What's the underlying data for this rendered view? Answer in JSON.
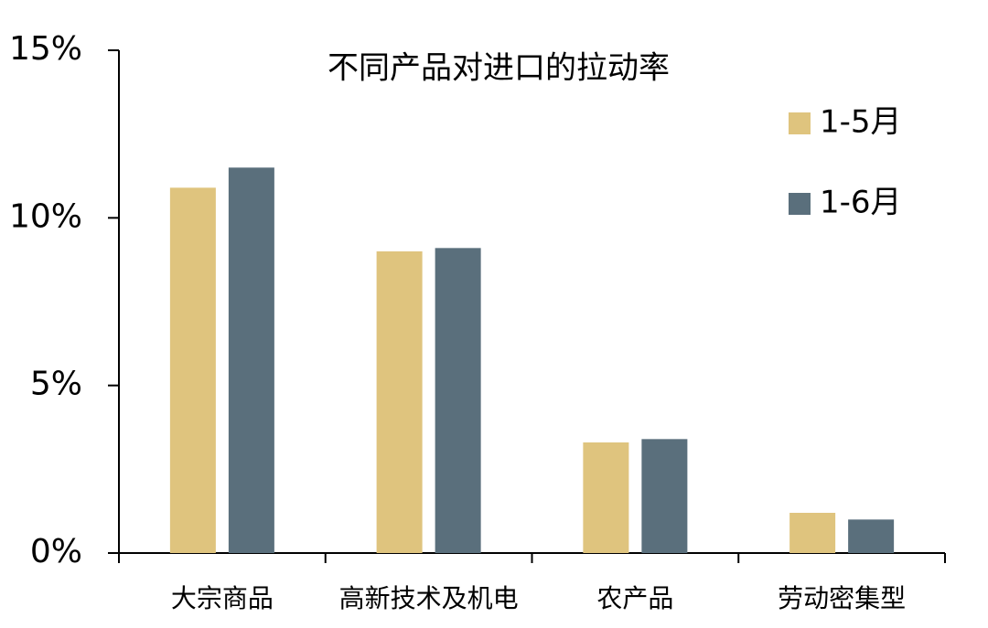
{
  "chart_data": {
    "type": "bar",
    "title": "不同产品对进口的拉动率",
    "categories": [
      "大宗商品",
      "高新技术及机电",
      "农产品",
      "劳动密集型"
    ],
    "series": [
      {
        "name": "1-5月",
        "color": "#dfc47e",
        "values": [
          10.9,
          9.0,
          3.3,
          1.2
        ]
      },
      {
        "name": "1-6月",
        "color": "#5a6f7c",
        "values": [
          11.5,
          9.1,
          3.4,
          1.0
        ]
      }
    ],
    "ylim": [
      0,
      15
    ],
    "yticks": [
      {
        "value": 0,
        "label": "0%"
      },
      {
        "value": 5,
        "label": "5%"
      },
      {
        "value": 10,
        "label": "10%"
      },
      {
        "value": 15,
        "label": "15%"
      }
    ],
    "grid": false,
    "legend": "upper right"
  }
}
